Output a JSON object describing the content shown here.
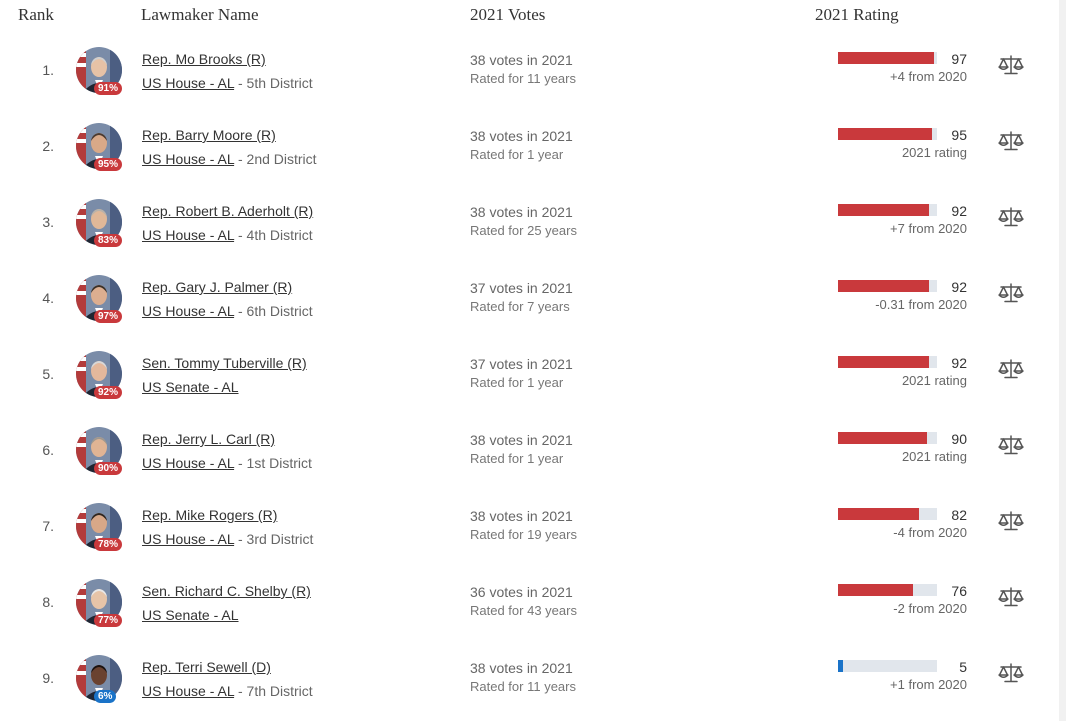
{
  "headers": {
    "rank": "Rank",
    "name": "Lawmaker Name",
    "votes": "2021 Votes",
    "rating": "2021 Rating"
  },
  "colors": {
    "republican": "#c9393c",
    "democrat": "#1a73c8",
    "bar_track": "#e1e6ec"
  },
  "rows": [
    {
      "rank": "1.",
      "name": "Rep. Mo Brooks (R)",
      "chamber": "US House - AL",
      "district": " - 5th District",
      "votes": "38 votes in 2021",
      "rated": "Rated for 11 years",
      "score": "97",
      "score_value": 97,
      "delta": "+4 from 2020",
      "badge": "91%",
      "party": "R",
      "skin": "#e6c2a6",
      "hair": "#cfcfcf"
    },
    {
      "rank": "2.",
      "name": "Rep. Barry Moore (R)",
      "chamber": "US House - AL",
      "district": " - 2nd District",
      "votes": "38 votes in 2021",
      "rated": "Rated for 1 year",
      "score": "95",
      "score_value": 95,
      "delta": "2021 rating",
      "badge": "95%",
      "party": "R",
      "skin": "#d9a988",
      "hair": "#4a3a30"
    },
    {
      "rank": "3.",
      "name": "Rep. Robert B. Aderholt (R)",
      "chamber": "US House - AL",
      "district": " - 4th District",
      "votes": "38 votes in 2021",
      "rated": "Rated for 25 years",
      "score": "92",
      "score_value": 92,
      "delta": "+7 from 2020",
      "badge": "83%",
      "party": "R",
      "skin": "#e0b898",
      "hair": "#b8b2aa"
    },
    {
      "rank": "4.",
      "name": "Rep. Gary J. Palmer (R)",
      "chamber": "US House - AL",
      "district": " - 6th District",
      "votes": "37 votes in 2021",
      "rated": "Rated for 7 years",
      "score": "92",
      "score_value": 92,
      "delta": "-0.31 from 2020",
      "badge": "97%",
      "party": "R",
      "skin": "#dcae90",
      "hair": "#3a3028"
    },
    {
      "rank": "5.",
      "name": "Sen. Tommy Tuberville (R)",
      "chamber": "US Senate - AL",
      "district": "",
      "votes": "37 votes in 2021",
      "rated": "Rated for 1 year",
      "score": "92",
      "score_value": 92,
      "delta": "2021 rating",
      "badge": "92%",
      "party": "R",
      "skin": "#e4b89c",
      "hair": "#d8d8d8"
    },
    {
      "rank": "6.",
      "name": "Rep. Jerry L. Carl (R)",
      "chamber": "US House - AL",
      "district": " - 1st District",
      "votes": "38 votes in 2021",
      "rated": "Rated for 1 year",
      "score": "90",
      "score_value": 90,
      "delta": "2021 rating",
      "badge": "90%",
      "party": "R",
      "skin": "#e0b494",
      "hair": "#9e9890"
    },
    {
      "rank": "7.",
      "name": "Rep. Mike Rogers (R)",
      "chamber": "US House - AL",
      "district": " - 3rd District",
      "votes": "38 votes in 2021",
      "rated": "Rated for 19 years",
      "score": "82",
      "score_value": 82,
      "delta": "-4 from 2020",
      "badge": "78%",
      "party": "R",
      "skin": "#d8a888",
      "hair": "#2e2620"
    },
    {
      "rank": "8.",
      "name": "Sen. Richard C. Shelby (R)",
      "chamber": "US Senate - AL",
      "district": "",
      "votes": "36 votes in 2021",
      "rated": "Rated for 43 years",
      "score": "76",
      "score_value": 76,
      "delta": "-2 from 2020",
      "badge": "77%",
      "party": "R",
      "skin": "#e6c4a8",
      "hair": "#e8e8e8"
    },
    {
      "rank": "9.",
      "name": "Rep. Terri Sewell (D)",
      "chamber": "US House - AL",
      "district": " - 7th District",
      "votes": "38 votes in 2021",
      "rated": "Rated for 11 years",
      "score": "5",
      "score_value": 5,
      "delta": "+1 from 2020",
      "badge": "6%",
      "party": "D",
      "skin": "#6a4230",
      "hair": "#1a1210"
    }
  ]
}
